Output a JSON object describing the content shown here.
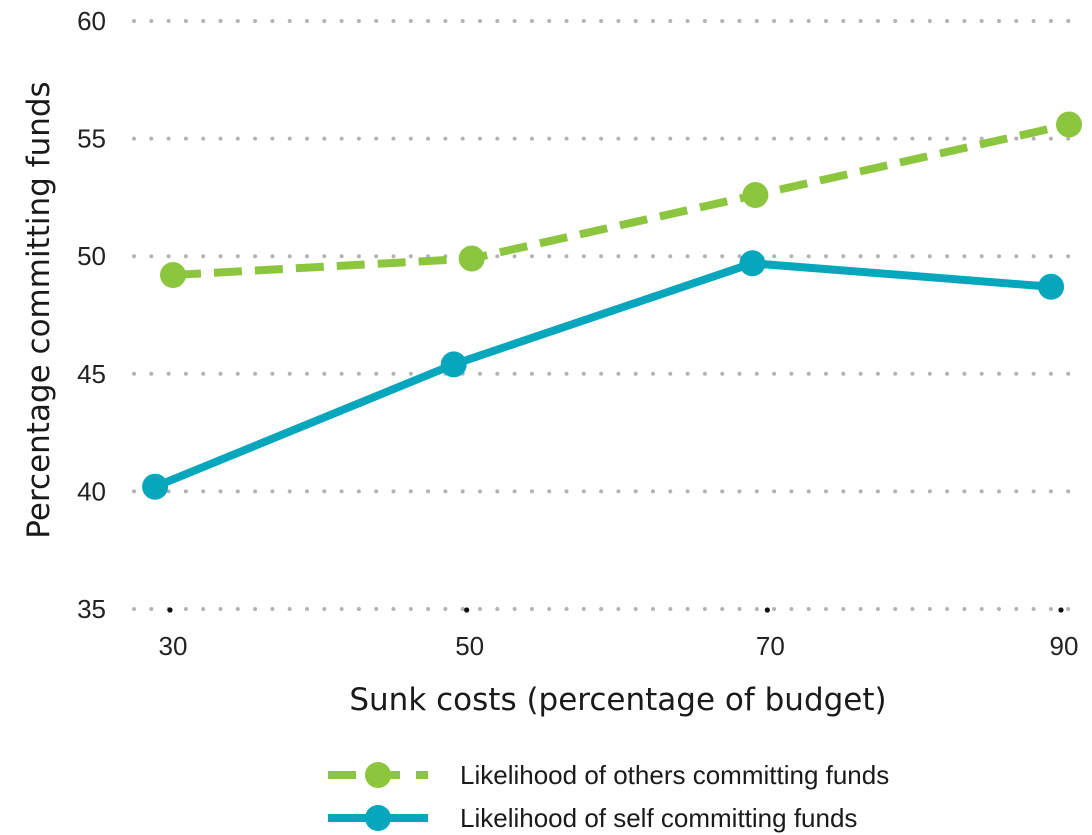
{
  "chart_data": {
    "type": "line",
    "title": "",
    "xlabel": "Sunk costs (percentage of budget)",
    "ylabel": "Percentage committing funds",
    "x": [
      30,
      50,
      70,
      90
    ],
    "x_tick_labels": [
      "30",
      "50",
      "70",
      "90"
    ],
    "y_tick_labels": [
      "35",
      "40",
      "45",
      "50",
      "55",
      "60"
    ],
    "y_ticks": [
      35,
      40,
      45,
      50,
      55,
      60
    ],
    "ylim": [
      35,
      60
    ],
    "xlim": [
      27,
      91
    ],
    "grid": "dotted horizontal",
    "legend_position": "bottom-center",
    "series": [
      {
        "name": "Likelihood of others committing funds",
        "x": [
          30,
          50,
          69,
          90
        ],
        "values": [
          49.2,
          49.9,
          52.6,
          55.6
        ],
        "color": "#8cc63f",
        "line_style": "dashed",
        "marker": "circle"
      },
      {
        "name": "Likelihood of self committing funds",
        "x": [
          29,
          49,
          69,
          89
        ],
        "values": [
          40.2,
          45.4,
          49.7,
          48.7
        ],
        "color": "#06a7bd",
        "line_style": "solid",
        "marker": "circle"
      }
    ]
  }
}
